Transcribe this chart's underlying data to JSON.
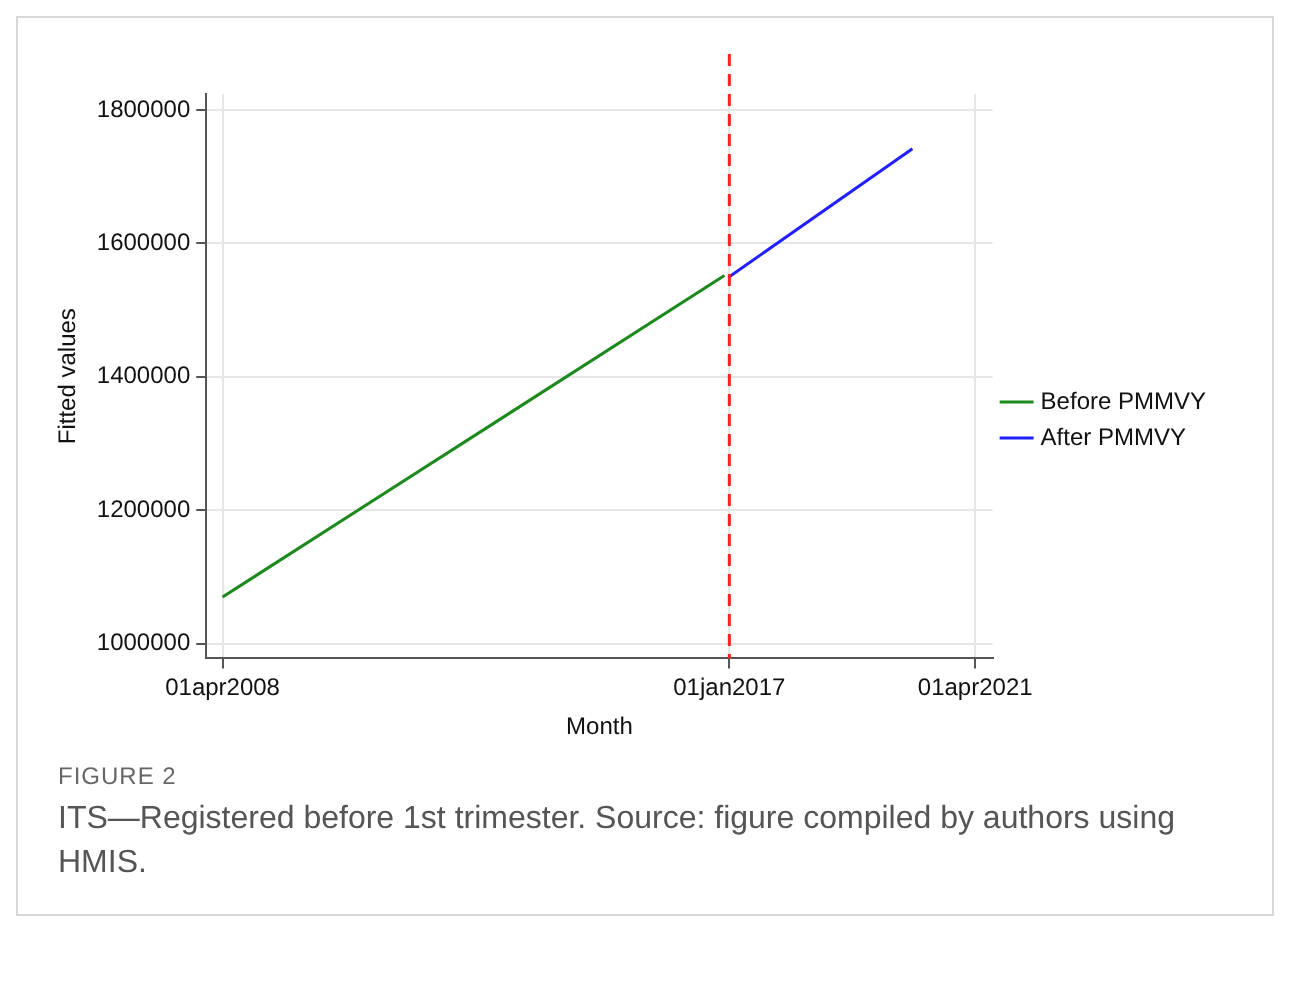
{
  "chart_data": {
    "type": "line",
    "xlabel": "Month",
    "ylabel": "Fitted values",
    "xlim": [
      "2007-12-20",
      "2021-07-20"
    ],
    "xticks": [
      {
        "value": "2008-04-01",
        "label": "01apr2008"
      },
      {
        "value": "2017-01-01",
        "label": "01jan2017"
      },
      {
        "value": "2021-04-01",
        "label": "01apr2021"
      }
    ],
    "ylim": [
      978000,
      1824000
    ],
    "yticks": [
      1000000,
      1200000,
      1400000,
      1600000,
      1800000
    ],
    "series": [
      {
        "name": "Before PMMVY",
        "color": "#1a8a1a",
        "x": [
          "2008-04",
          "2016-12"
        ],
        "values": [
          1070000,
          1552000
        ]
      },
      {
        "name": "After PMMVY",
        "color": "#1f1fff",
        "x": [
          "2017-01",
          "2020-03"
        ],
        "values": [
          1550000,
          1742000
        ]
      }
    ],
    "ref_lines": [
      {
        "axis": "x",
        "value": "2017-01-01",
        "color": "#ff2020",
        "line_style": "dashed"
      }
    ],
    "grid": true,
    "legend": "right",
    "line_style": "solid",
    "marker": "none",
    "annotations": [
      "FIGURE 2",
      "ITS—Registered before 1st trimester. Source: figure compiled by authors using HMIS."
    ]
  }
}
